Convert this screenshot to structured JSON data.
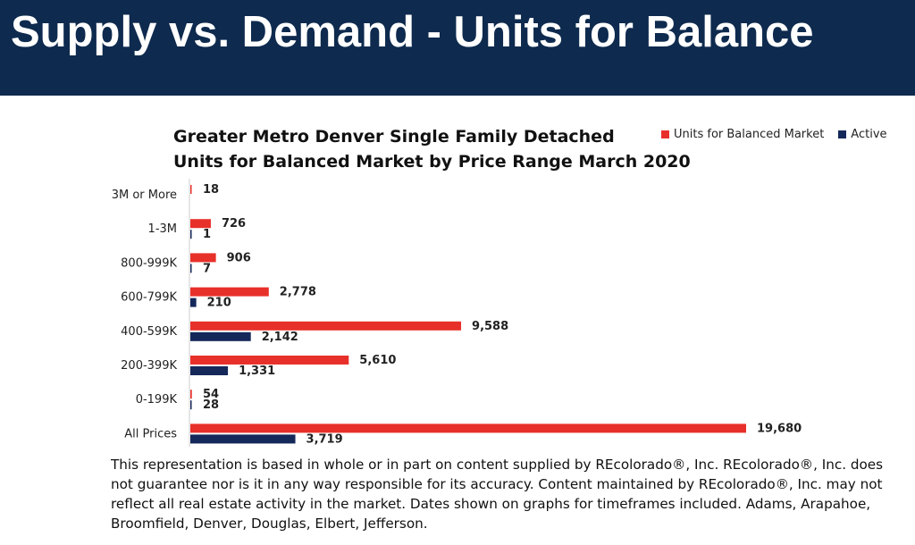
{
  "header": {
    "title": "Supply vs. Demand - Units for Balance"
  },
  "chart_data": {
    "type": "bar",
    "orientation": "horizontal",
    "title_line1": "Greater Metro Denver Single Family Detached",
    "title_line2": "Units for Balanced Market by Price Range March 2020",
    "categories": [
      "3M or More",
      "1-3M",
      "800-999K",
      "600-799K",
      "400-599K",
      "200-399K",
      "0-199K",
      "All Prices"
    ],
    "series": [
      {
        "name": "Units for Balanced Market",
        "color": "#e8302a",
        "values": [
          18,
          726,
          906,
          2778,
          9588,
          5610,
          54,
          19680
        ],
        "labels": [
          "18",
          "726",
          "906",
          "2,778",
          "9,588",
          "5,610",
          "54",
          "19,680"
        ]
      },
      {
        "name": "Active",
        "color": "#15285a",
        "values": [
          0,
          1,
          7,
          210,
          2142,
          1331,
          28,
          3719
        ],
        "labels": [
          "",
          "1",
          "7",
          "210",
          "2,142",
          "1,331",
          "28",
          "3,719"
        ]
      }
    ],
    "legend_position": "top-right",
    "grid": false
  },
  "footnote": "This representation is based in whole or in part on content supplied by REcolorado®, Inc. REcolorado®, Inc. does not guarantee nor is it in any way responsible for its accuracy. Content maintained by REcolorado®, Inc. may not reflect all real estate activity in the market. Dates shown on graphs for timeframes included.  Adams, Arapahoe, Broomfield, Denver, Douglas, Elbert, Jefferson."
}
